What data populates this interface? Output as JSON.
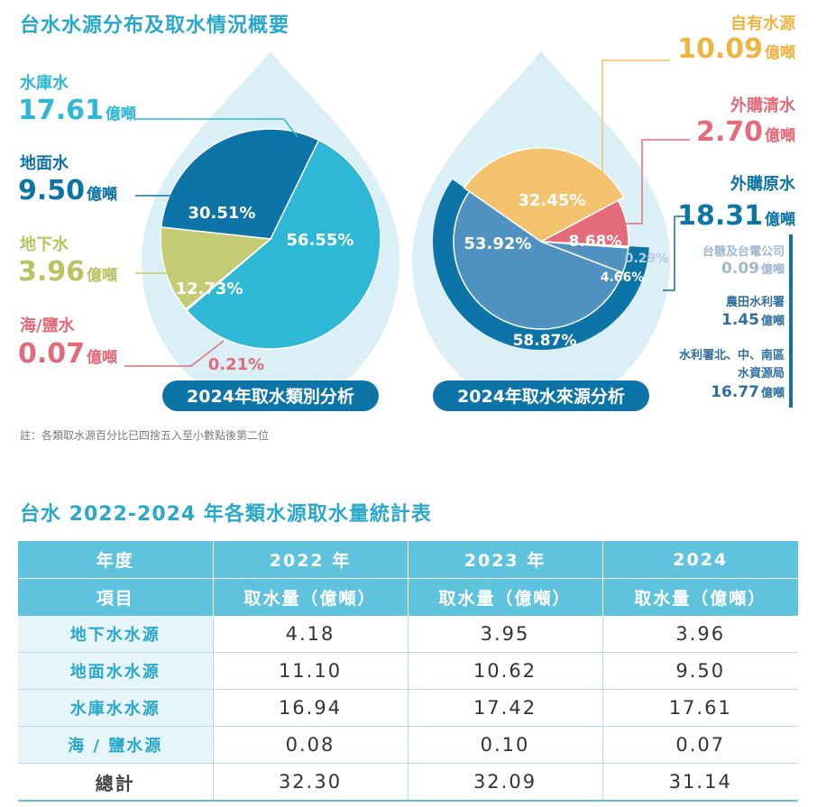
{
  "title1": "台水水源分布及取水情況概要",
  "note": "註：各類取水源百分比已四捨五入至小數點後第二位",
  "title2": "台水 2022-2024 年各類水源取水量統計表",
  "colors": {
    "reservoir": "#2fb8d6",
    "surface": "#0d74a7",
    "ground": "#c3cc72",
    "sea": "#e36b7a",
    "self": "#f2c26c",
    "purchased_clean": "#e36b7a",
    "purchased_raw": "#4f92c2",
    "small": "#b8cce0",
    "drop": "#daeff6",
    "dark_ring": "#0d74a7"
  },
  "unit": "億噸",
  "legend_left": [
    {
      "name": "水庫水",
      "value": "17.61"
    },
    {
      "name": "地面水",
      "value": "9.50"
    },
    {
      "name": "地下水",
      "value": "3.96"
    },
    {
      "name": "海/鹽水",
      "value": "0.07"
    }
  ],
  "legend_right": [
    {
      "name": "自有水源",
      "value": "10.09"
    },
    {
      "name": "外購清水",
      "value": "2.70"
    },
    {
      "name": "外購原水",
      "value": "18.31"
    }
  ],
  "sub_right": [
    {
      "name": "台糖及台電公司",
      "value": "0.09"
    },
    {
      "name": "農田水利署",
      "value": "1.45"
    },
    {
      "name_line1": "水利署北、中、南區",
      "name_line2": "水資源局",
      "value": "16.77"
    }
  ],
  "chart_data": [
    {
      "type": "pie",
      "title": "2024年取水類別分析",
      "slices": [
        {
          "label": "水庫水",
          "value": 56.55,
          "text": "56.55%"
        },
        {
          "label": "海/鹽水",
          "value": 0.21,
          "text": "0.21%"
        },
        {
          "label": "地下水",
          "value": 12.73,
          "text": "12.73%"
        },
        {
          "label": "地面水",
          "value": 30.51,
          "text": "30.51%"
        }
      ]
    },
    {
      "type": "pie",
      "title": "2024年取水來源分析",
      "slices": [
        {
          "label": "自有水源",
          "value": 32.45,
          "text": "32.45%"
        },
        {
          "label": "外購清水",
          "value": 8.68,
          "text": "8.68%"
        },
        {
          "label": "台糖及台電公司",
          "value": 0.29,
          "text": "0.29%"
        },
        {
          "label": "農田水利署",
          "value": 4.66,
          "text": "4.66%"
        },
        {
          "label": "水利署北、中、南區水資源局",
          "value": 53.92,
          "text": "53.92%"
        }
      ],
      "outer_ring": {
        "label": "外購原水",
        "value": 58.87,
        "text": "58.87%"
      }
    }
  ],
  "table": {
    "header_row1": [
      "年度",
      "2022 年",
      "2023 年",
      "2024"
    ],
    "header_row2": [
      "項目",
      "取水量（億噸）",
      "取水量（億噸）",
      "取水量（億噸）"
    ],
    "rows": [
      {
        "name": "地下水水源",
        "values": [
          "4.18",
          "3.95",
          "3.96"
        ]
      },
      {
        "name": "地面水水源",
        "values": [
          "11.10",
          "10.62",
          "9.50"
        ]
      },
      {
        "name": "水庫水水源",
        "values": [
          "16.94",
          "17.42",
          "17.61"
        ]
      },
      {
        "name": "海 / 鹽水源",
        "values": [
          "0.08",
          "0.10",
          "0.07"
        ]
      }
    ],
    "total": {
      "name": "總計",
      "values": [
        "32.30",
        "32.09",
        "31.14"
      ]
    }
  }
}
